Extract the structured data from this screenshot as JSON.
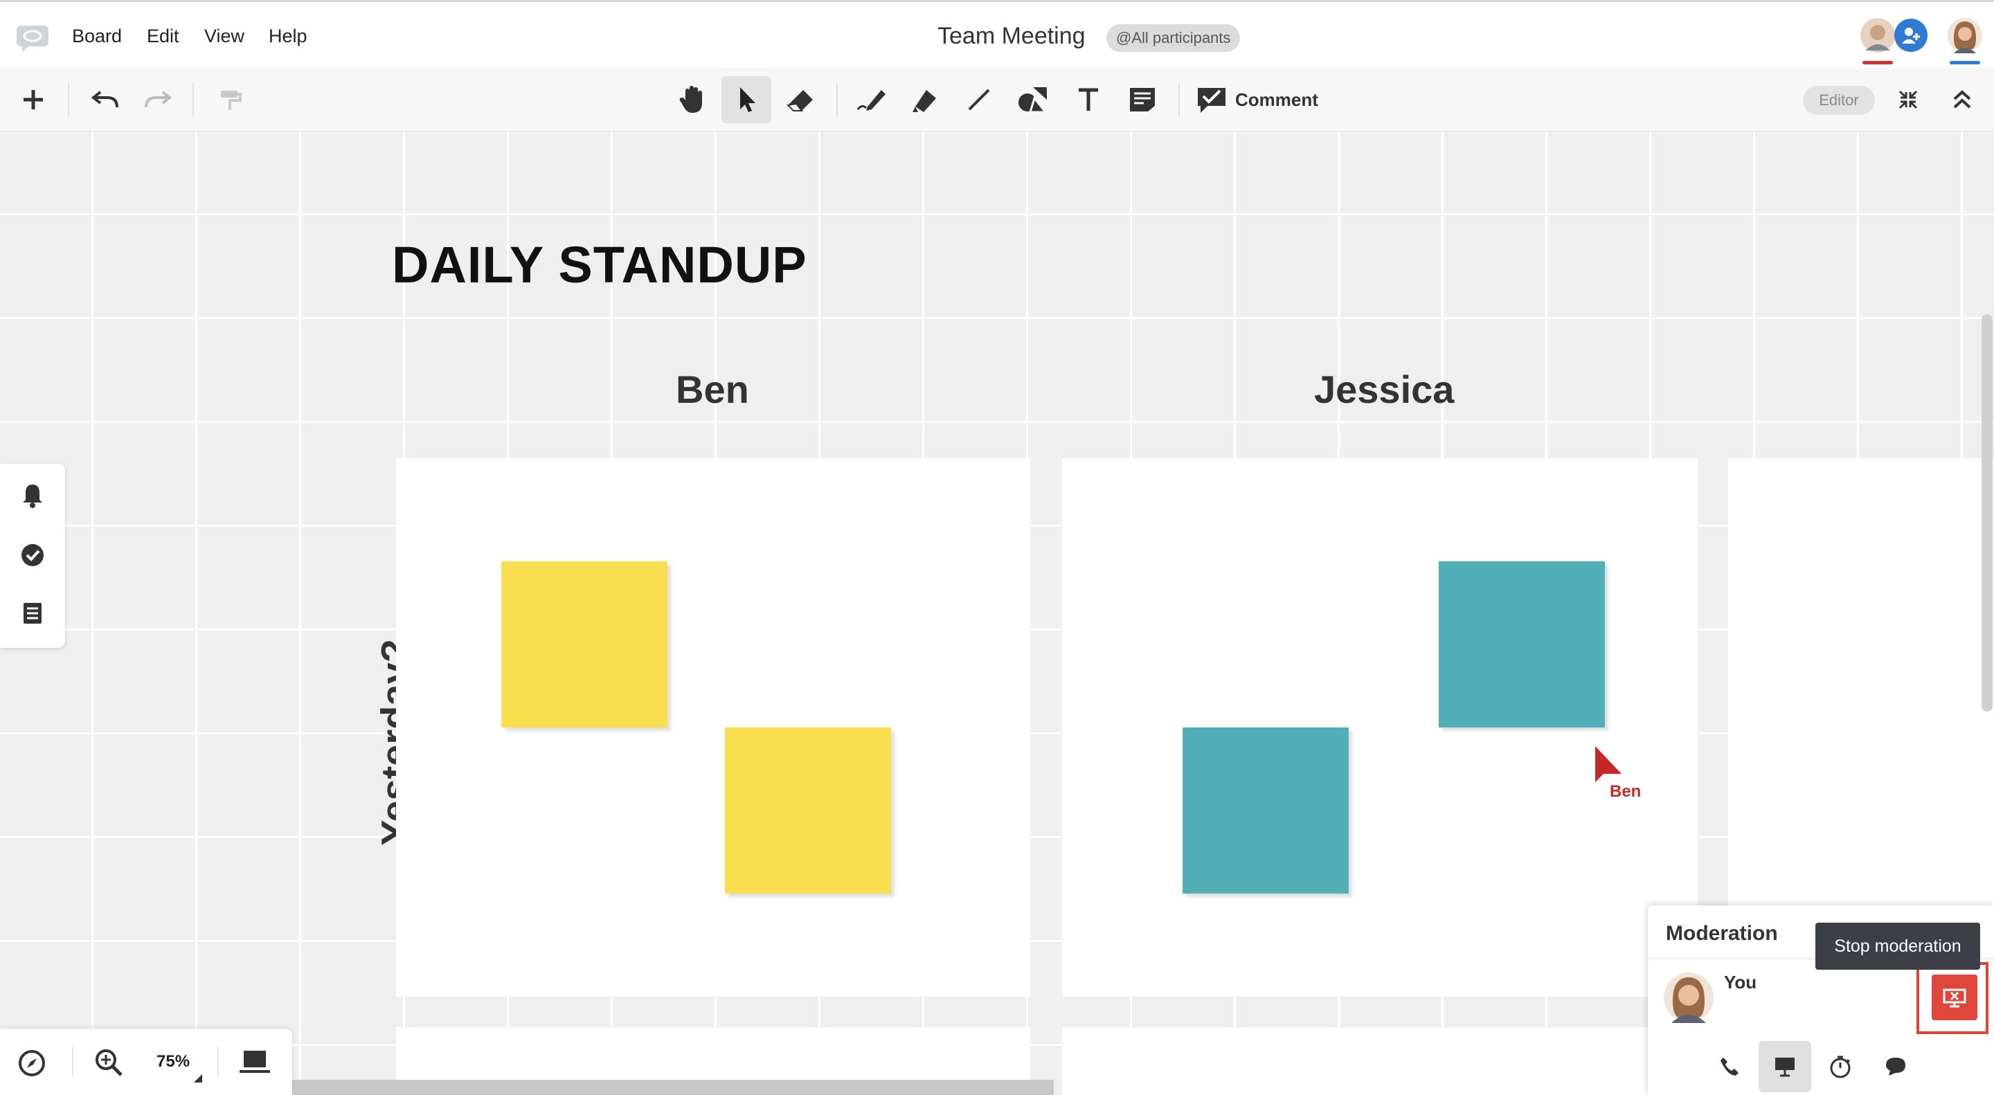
{
  "menubar": {
    "items": [
      "Board",
      "Edit",
      "View",
      "Help"
    ],
    "board_title": "Team Meeting",
    "participants_chip": "@All participants"
  },
  "toolbar": {
    "comment_label": "Comment",
    "role": "Editor"
  },
  "board": {
    "heading": "DAILY STANDUP",
    "columns": [
      "Ben",
      "Jessica"
    ],
    "row_label": "Yesterday?",
    "remote_cursor_name": "Ben"
  },
  "zoom": {
    "value": "75%"
  },
  "moderation": {
    "title": "Moderation",
    "user_label": "You",
    "tooltip": "Stop moderation"
  },
  "colors": {
    "sticky_yellow": "#f9df50",
    "sticky_teal": "#53afb7",
    "stop_button": "#e0473c",
    "cursor_red": "#c62828"
  }
}
